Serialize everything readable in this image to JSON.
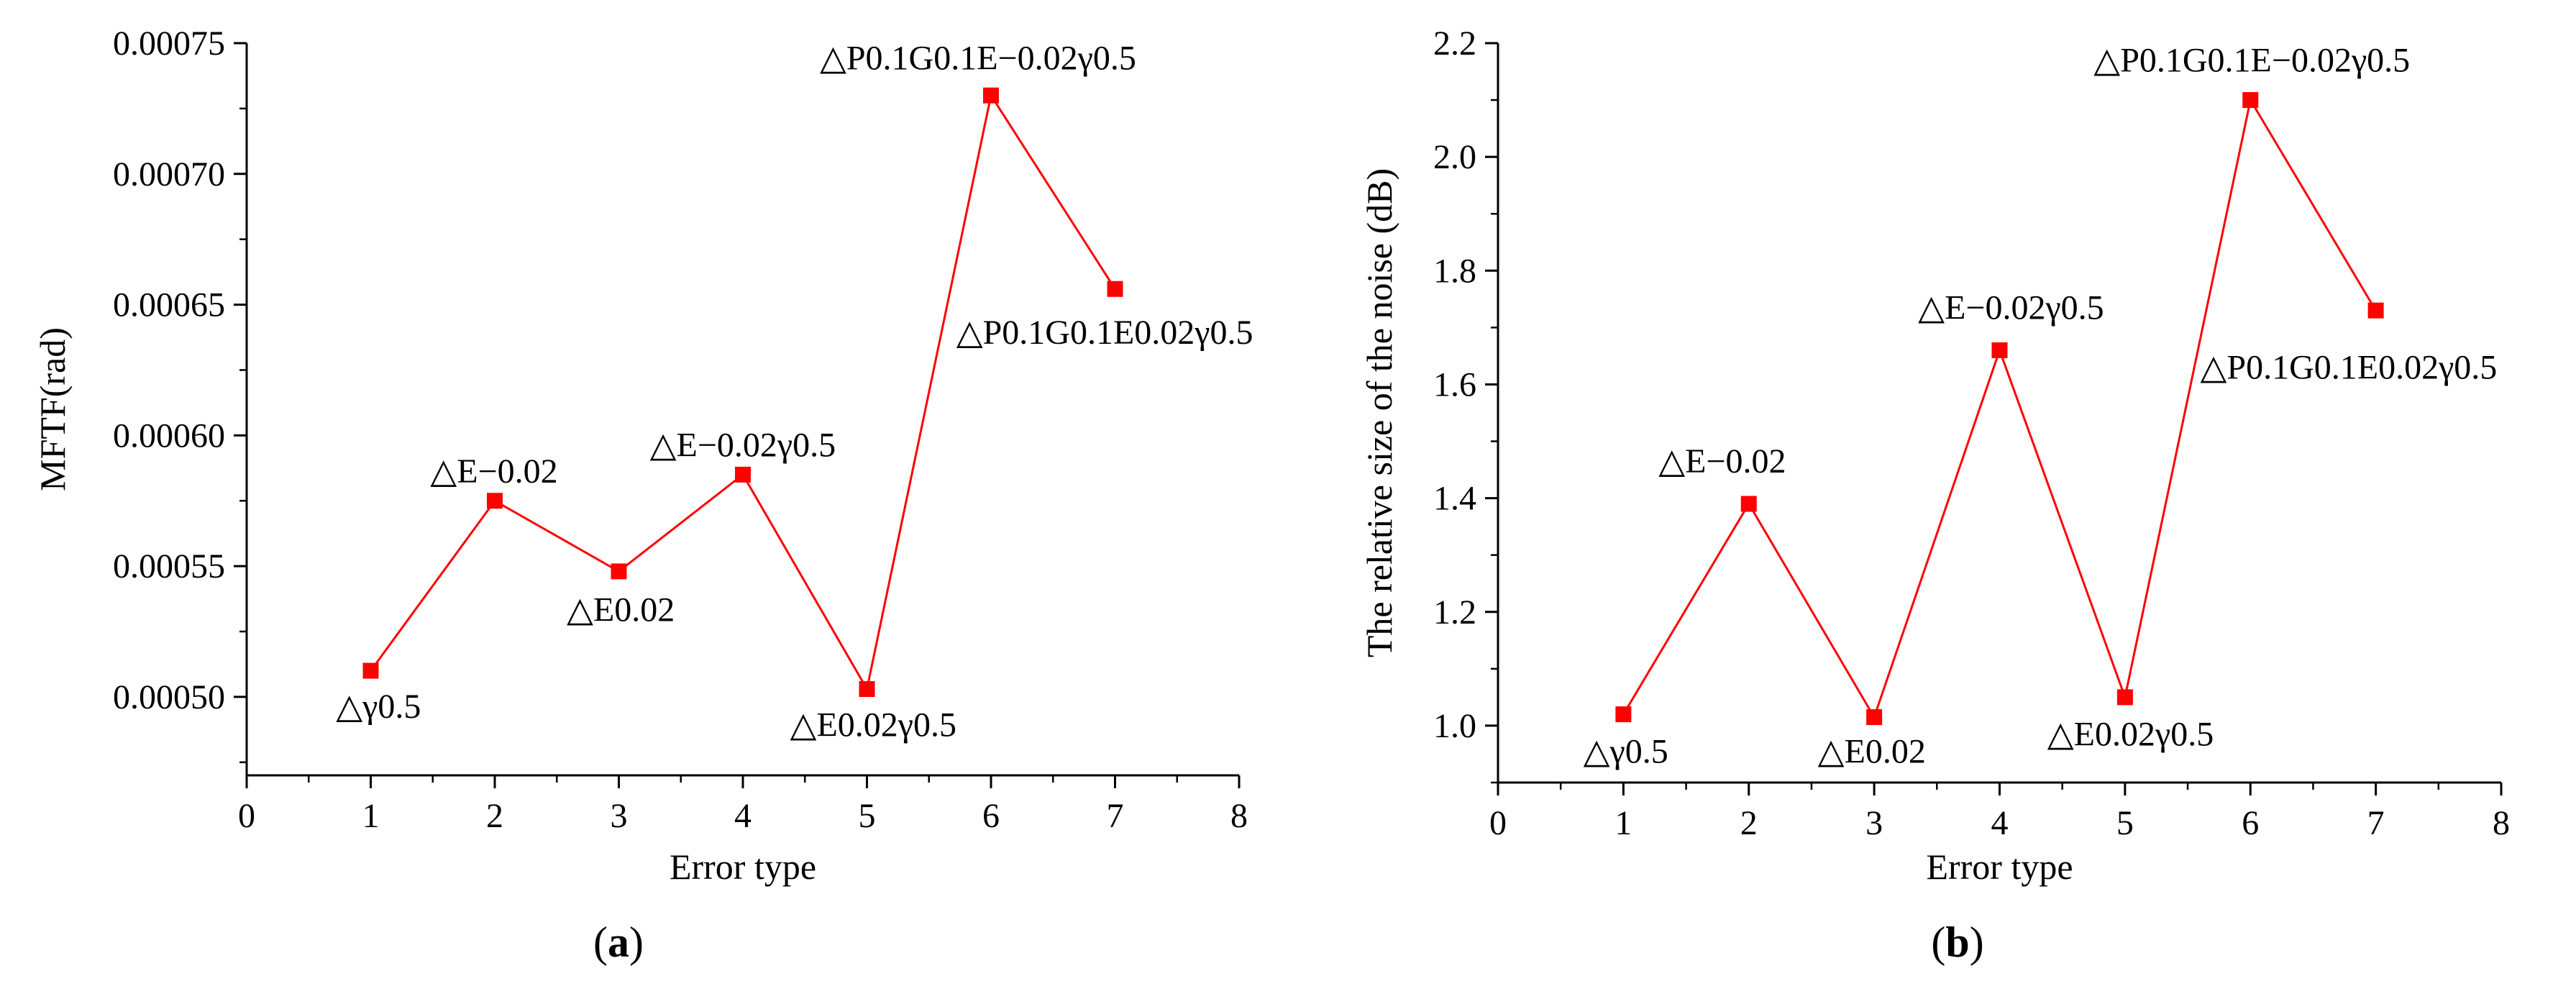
{
  "chart_data": [
    {
      "type": "line",
      "panel_label": [
        "(",
        "a",
        ")"
      ],
      "xlabel": "Error type",
      "ylabel": "MFTF(rad)",
      "xlim": [
        0,
        8
      ],
      "ylim": [
        0.00047,
        0.00075
      ],
      "xticks": [
        0,
        1,
        2,
        3,
        4,
        5,
        6,
        7,
        8
      ],
      "xtick_labels": [
        "0",
        "1",
        "2",
        "3",
        "4",
        "5",
        "6",
        "7",
        "8"
      ],
      "yticks": [
        0.0005,
        0.00055,
        0.0006,
        0.00065,
        0.0007,
        0.00075
      ],
      "ytick_labels": [
        "0.00050",
        "0.00055",
        "0.00060",
        "0.00065",
        "0.00070",
        "0.00075"
      ],
      "series": [
        {
          "color": "#ff0000",
          "marker": "square",
          "x": [
            1,
            2,
            3,
            4,
            5,
            6,
            7
          ],
          "y": [
            0.00051,
            0.000575,
            0.000548,
            0.000585,
            0.000503,
            0.00073,
            0.000656
          ]
        }
      ],
      "annotations": [
        {
          "text": "△γ0.5",
          "x": 0.72,
          "y": 0.000492
        },
        {
          "text": "△E−0.02",
          "x": 1.48,
          "y": 0.000582
        },
        {
          "text": "△E0.02",
          "x": 2.58,
          "y": 0.000529
        },
        {
          "text": "△E−0.02γ0.5",
          "x": 3.25,
          "y": 0.000592
        },
        {
          "text": "△E0.02γ0.5",
          "x": 4.38,
          "y": 0.000485
        },
        {
          "text": "△P0.1G0.1E−0.02γ0.5",
          "x": 4.62,
          "y": 0.00074
        },
        {
          "text": "△P0.1G0.1E0.02γ0.5",
          "x": 5.72,
          "y": 0.000635
        }
      ]
    },
    {
      "type": "line",
      "panel_label": [
        "(",
        "b",
        ")"
      ],
      "xlabel": "Error type",
      "ylabel": "The relative size of the noise (dB)",
      "xlim": [
        0,
        8
      ],
      "ylim": [
        0.9,
        2.2
      ],
      "xticks": [
        0,
        1,
        2,
        3,
        4,
        5,
        6,
        7,
        8
      ],
      "xtick_labels": [
        "0",
        "1",
        "2",
        "3",
        "4",
        "5",
        "6",
        "7",
        "8"
      ],
      "yticks": [
        1.0,
        1.2,
        1.4,
        1.6,
        1.8,
        2.0,
        2.2
      ],
      "ytick_labels": [
        "1.0",
        "1.2",
        "1.4",
        "1.6",
        "1.8",
        "2.0",
        "2.2"
      ],
      "series": [
        {
          "color": "#ff0000",
          "marker": "square",
          "x": [
            1,
            2,
            3,
            4,
            5,
            6,
            7
          ],
          "y": [
            1.02,
            1.39,
            1.015,
            1.66,
            1.05,
            2.1,
            1.73
          ]
        }
      ],
      "annotations": [
        {
          "text": "△γ0.5",
          "x": 0.68,
          "y": 0.935
        },
        {
          "text": "△E−0.02",
          "x": 1.28,
          "y": 1.445
        },
        {
          "text": "△E0.02",
          "x": 2.55,
          "y": 0.935
        },
        {
          "text": "△E−0.02γ0.5",
          "x": 3.35,
          "y": 1.715
        },
        {
          "text": "△E0.02γ0.5",
          "x": 4.38,
          "y": 0.965
        },
        {
          "text": "△P0.1G0.1E−0.02γ0.5",
          "x": 4.75,
          "y": 2.15
        },
        {
          "text": "△P0.1G0.1E0.02γ0.5",
          "x": 5.6,
          "y": 1.61
        }
      ]
    }
  ]
}
